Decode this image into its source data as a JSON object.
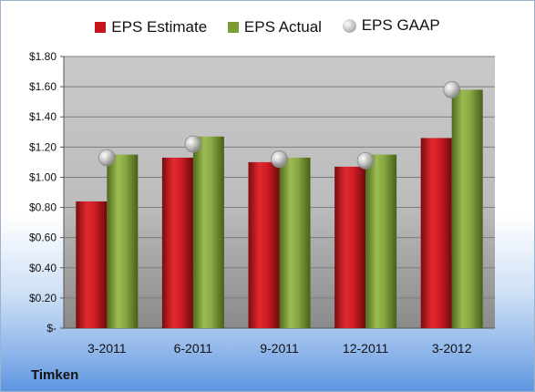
{
  "chart_data": {
    "type": "bar",
    "categories": [
      "3-2011",
      "6-2011",
      "9-2011",
      "12-2011",
      "3-2012"
    ],
    "series": [
      {
        "name": "EPS Estimate",
        "values": [
          0.84,
          1.13,
          1.1,
          1.07,
          1.26
        ],
        "color": "#c8151b"
      },
      {
        "name": "EPS Actual",
        "values": [
          1.15,
          1.27,
          1.13,
          1.15,
          1.58
        ],
        "color": "#7b9c36"
      },
      {
        "name": "EPS GAAP",
        "values": [
          1.13,
          1.22,
          1.12,
          1.11,
          1.58
        ],
        "color": "#b0b0b0",
        "marker": "sphere"
      }
    ],
    "yticks": [
      "$-",
      "$0.20",
      "$0.40",
      "$0.60",
      "$0.80",
      "$1.00",
      "$1.20",
      "$1.40",
      "$1.60",
      "$1.80"
    ],
    "ylim": [
      0,
      1.8
    ],
    "grid": true,
    "legend_position": "top"
  },
  "legend": {
    "estimate": "EPS Estimate",
    "actual": "EPS Actual",
    "gaap": "EPS GAAP"
  },
  "company": "Timken"
}
